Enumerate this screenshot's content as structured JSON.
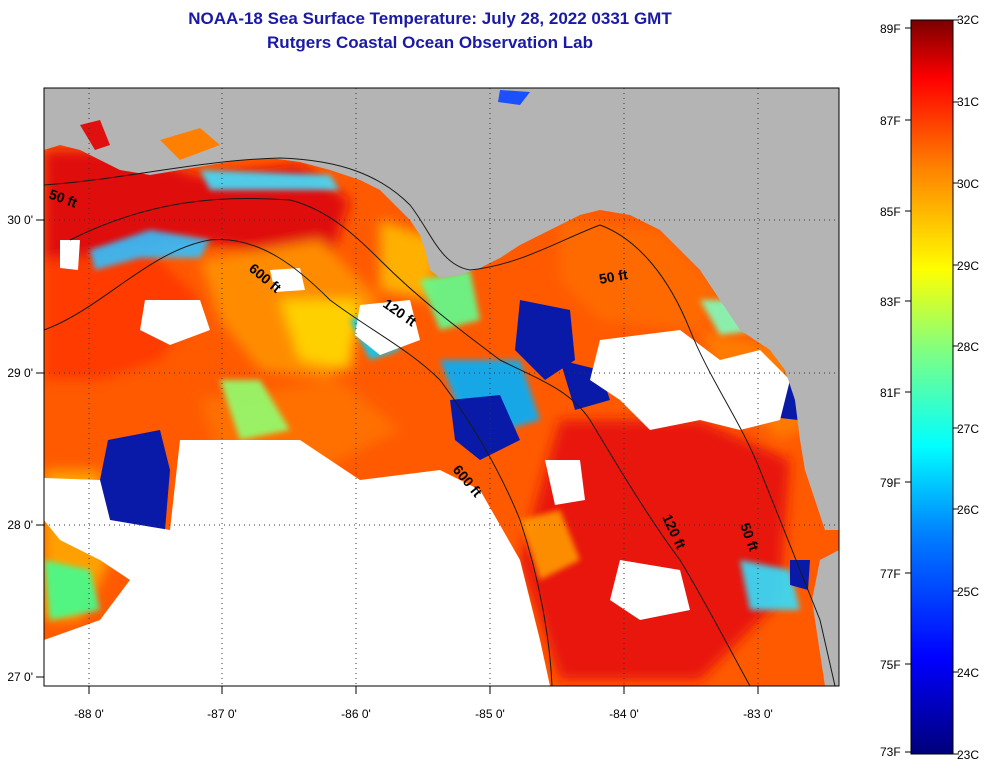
{
  "title": {
    "line1": "NOAA-18 Sea Surface Temperature:  July 28, 2022 0331 GMT",
    "line2": "Rutgers Coastal Ocean Observation Lab"
  },
  "map": {
    "colors": {
      "land": "#b4b4b4",
      "cloud": "#ffffff",
      "frame": "#000000"
    },
    "lon_ticks": [
      "-88 0'",
      "-87 0'",
      "-86 0'",
      "-85 0'",
      "-84 0'",
      "-83 0'"
    ],
    "lat_ticks": [
      "30 0'",
      "29 0'",
      "28 0'",
      "27 0'"
    ],
    "contour_labels": [
      "50 ft",
      "600 ft",
      "120 ft",
      "50 ft",
      "600 ft",
      "120 ft",
      "50 ft"
    ]
  },
  "colorbar": {
    "fahrenheit_labels": [
      "89F",
      "87F",
      "85F",
      "83F",
      "81F",
      "79F",
      "77F",
      "75F",
      "73F"
    ],
    "celsius_labels": [
      "32C",
      "31C",
      "30C",
      "29C",
      "28C",
      "27C",
      "26C",
      "25C",
      "24C",
      "23C"
    ],
    "stops": [
      "#00007a",
      "#0000ff",
      "#0080ff",
      "#00ffff",
      "#80ff80",
      "#ffff00",
      "#ff8000",
      "#ff0000",
      "#7a0000"
    ]
  }
}
